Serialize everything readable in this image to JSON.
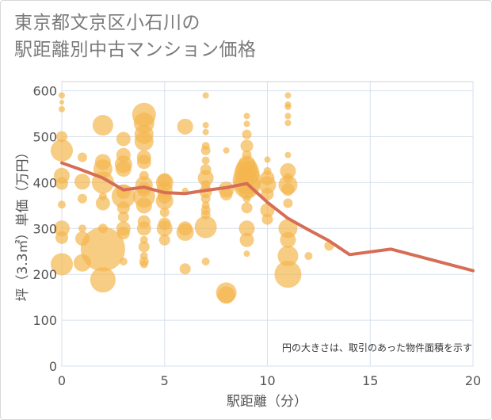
{
  "title_line1": "東京都文京区小石川の",
  "title_line2": "駅距離別中古マンション価格",
  "chart_data": {
    "type": "scatter",
    "xlabel": "駅距離（分）",
    "ylabel": "坪（3.3㎡）単価（万円）",
    "xlim": [
      0,
      20
    ],
    "ylim": [
      0,
      620
    ],
    "x_ticks": [
      0,
      5,
      10,
      15,
      20
    ],
    "y_ticks": [
      0,
      100,
      200,
      300,
      400,
      500,
      600
    ],
    "grid": true,
    "note": "円の大きさは、取引のあった物件面積を示す",
    "bubble_color": "#f3b74f",
    "line_color": "#d66e55",
    "line": {
      "x": [
        0,
        1,
        2,
        3,
        4,
        5,
        6,
        7,
        8,
        9,
        10,
        11,
        12,
        13,
        14,
        16,
        20
      ],
      "y": [
        443,
        427,
        410,
        384,
        390,
        378,
        376,
        383,
        389,
        398,
        357,
        322,
        297,
        273,
        243,
        255,
        208
      ]
    },
    "points": [
      {
        "x": 0,
        "y": 590,
        "s": 4
      },
      {
        "x": 0,
        "y": 575,
        "s": 3
      },
      {
        "x": 0,
        "y": 560,
        "s": 4
      },
      {
        "x": 0,
        "y": 500,
        "s": 7
      },
      {
        "x": 0,
        "y": 470,
        "s": 14
      },
      {
        "x": 0,
        "y": 415,
        "s": 10
      },
      {
        "x": 0,
        "y": 398,
        "s": 8
      },
      {
        "x": 0,
        "y": 352,
        "s": 5
      },
      {
        "x": 0,
        "y": 300,
        "s": 10
      },
      {
        "x": 0,
        "y": 280,
        "s": 8
      },
      {
        "x": 0,
        "y": 222,
        "s": 14
      },
      {
        "x": 1,
        "y": 455,
        "s": 6
      },
      {
        "x": 1,
        "y": 402,
        "s": 10
      },
      {
        "x": 1,
        "y": 365,
        "s": 6
      },
      {
        "x": 1,
        "y": 300,
        "s": 5
      },
      {
        "x": 1,
        "y": 278,
        "s": 9
      },
      {
        "x": 1,
        "y": 225,
        "s": 11
      },
      {
        "x": 2,
        "y": 525,
        "s": 13
      },
      {
        "x": 2,
        "y": 445,
        "s": 10
      },
      {
        "x": 2,
        "y": 430,
        "s": 12
      },
      {
        "x": 2,
        "y": 400,
        "s": 14
      },
      {
        "x": 2,
        "y": 370,
        "s": 5
      },
      {
        "x": 2,
        "y": 355,
        "s": 9
      },
      {
        "x": 2,
        "y": 300,
        "s": 6
      },
      {
        "x": 2,
        "y": 255,
        "s": 28
      },
      {
        "x": 2,
        "y": 188,
        "s": 16
      },
      {
        "x": 3,
        "y": 495,
        "s": 9
      },
      {
        "x": 3,
        "y": 460,
        "s": 9
      },
      {
        "x": 3,
        "y": 440,
        "s": 11
      },
      {
        "x": 3,
        "y": 430,
        "s": 10
      },
      {
        "x": 3,
        "y": 380,
        "s": 9
      },
      {
        "x": 3,
        "y": 370,
        "s": 15
      },
      {
        "x": 3,
        "y": 345,
        "s": 8
      },
      {
        "x": 3,
        "y": 325,
        "s": 7
      },
      {
        "x": 3,
        "y": 300,
        "s": 9
      },
      {
        "x": 3,
        "y": 290,
        "s": 8
      },
      {
        "x": 3,
        "y": 228,
        "s": 5
      },
      {
        "x": 4,
        "y": 548,
        "s": 15
      },
      {
        "x": 4,
        "y": 530,
        "s": 13
      },
      {
        "x": 4,
        "y": 505,
        "s": 12
      },
      {
        "x": 4,
        "y": 490,
        "s": 12
      },
      {
        "x": 4,
        "y": 455,
        "s": 9
      },
      {
        "x": 4,
        "y": 445,
        "s": 9
      },
      {
        "x": 4,
        "y": 415,
        "s": 6
      },
      {
        "x": 4,
        "y": 395,
        "s": 11
      },
      {
        "x": 4,
        "y": 385,
        "s": 9
      },
      {
        "x": 4,
        "y": 370,
        "s": 14
      },
      {
        "x": 4,
        "y": 350,
        "s": 10
      },
      {
        "x": 4,
        "y": 315,
        "s": 8
      },
      {
        "x": 4,
        "y": 300,
        "s": 9
      },
      {
        "x": 4,
        "y": 275,
        "s": 5
      },
      {
        "x": 4,
        "y": 260,
        "s": 7
      },
      {
        "x": 4,
        "y": 240,
        "s": 5
      },
      {
        "x": 4,
        "y": 228,
        "s": 6
      },
      {
        "x": 4,
        "y": 222,
        "s": 5
      },
      {
        "x": 5,
        "y": 405,
        "s": 9
      },
      {
        "x": 5,
        "y": 400,
        "s": 11
      },
      {
        "x": 5,
        "y": 385,
        "s": 10
      },
      {
        "x": 5,
        "y": 370,
        "s": 9
      },
      {
        "x": 5,
        "y": 360,
        "s": 11
      },
      {
        "x": 5,
        "y": 335,
        "s": 6
      },
      {
        "x": 5,
        "y": 310,
        "s": 8
      },
      {
        "x": 5,
        "y": 300,
        "s": 10
      },
      {
        "x": 5,
        "y": 275,
        "s": 7
      },
      {
        "x": 6,
        "y": 522,
        "s": 10
      },
      {
        "x": 6,
        "y": 382,
        "s": 4
      },
      {
        "x": 6,
        "y": 300,
        "s": 9
      },
      {
        "x": 6,
        "y": 292,
        "s": 11
      },
      {
        "x": 6,
        "y": 212,
        "s": 7
      },
      {
        "x": 7,
        "y": 590,
        "s": 4
      },
      {
        "x": 7,
        "y": 525,
        "s": 4
      },
      {
        "x": 7,
        "y": 510,
        "s": 4
      },
      {
        "x": 7,
        "y": 480,
        "s": 5
      },
      {
        "x": 7,
        "y": 470,
        "s": 6
      },
      {
        "x": 7,
        "y": 448,
        "s": 5
      },
      {
        "x": 7,
        "y": 428,
        "s": 7
      },
      {
        "x": 7,
        "y": 410,
        "s": 10
      },
      {
        "x": 7,
        "y": 395,
        "s": 6
      },
      {
        "x": 7,
        "y": 380,
        "s": 8
      },
      {
        "x": 7,
        "y": 365,
        "s": 6
      },
      {
        "x": 7,
        "y": 350,
        "s": 5
      },
      {
        "x": 7,
        "y": 340,
        "s": 6
      },
      {
        "x": 7,
        "y": 330,
        "s": 6
      },
      {
        "x": 7,
        "y": 303,
        "s": 14
      },
      {
        "x": 7,
        "y": 228,
        "s": 5
      },
      {
        "x": 8,
        "y": 470,
        "s": 4
      },
      {
        "x": 8,
        "y": 385,
        "s": 10
      },
      {
        "x": 8,
        "y": 375,
        "s": 8
      },
      {
        "x": 8,
        "y": 160,
        "s": 13
      },
      {
        "x": 8,
        "y": 155,
        "s": 11
      },
      {
        "x": 9,
        "y": 545,
        "s": 4
      },
      {
        "x": 9,
        "y": 528,
        "s": 4
      },
      {
        "x": 9,
        "y": 505,
        "s": 6
      },
      {
        "x": 9,
        "y": 480,
        "s": 8
      },
      {
        "x": 9,
        "y": 460,
        "s": 6
      },
      {
        "x": 9,
        "y": 440,
        "s": 11
      },
      {
        "x": 9,
        "y": 430,
        "s": 14
      },
      {
        "x": 9,
        "y": 420,
        "s": 16
      },
      {
        "x": 9,
        "y": 405,
        "s": 18
      },
      {
        "x": 9,
        "y": 395,
        "s": 17
      },
      {
        "x": 9,
        "y": 380,
        "s": 10
      },
      {
        "x": 9,
        "y": 365,
        "s": 5
      },
      {
        "x": 9,
        "y": 345,
        "s": 7
      },
      {
        "x": 9,
        "y": 300,
        "s": 10
      },
      {
        "x": 9,
        "y": 275,
        "s": 9
      },
      {
        "x": 9,
        "y": 245,
        "s": 4
      },
      {
        "x": 10,
        "y": 450,
        "s": 4
      },
      {
        "x": 10,
        "y": 425,
        "s": 5
      },
      {
        "x": 10,
        "y": 410,
        "s": 9
      },
      {
        "x": 10,
        "y": 395,
        "s": 11
      },
      {
        "x": 10,
        "y": 375,
        "s": 8
      },
      {
        "x": 10,
        "y": 340,
        "s": 9
      },
      {
        "x": 10,
        "y": 320,
        "s": 7
      },
      {
        "x": 11,
        "y": 590,
        "s": 4
      },
      {
        "x": 11,
        "y": 570,
        "s": 4
      },
      {
        "x": 11,
        "y": 565,
        "s": 4
      },
      {
        "x": 11,
        "y": 545,
        "s": 4
      },
      {
        "x": 11,
        "y": 530,
        "s": 4
      },
      {
        "x": 11,
        "y": 460,
        "s": 4
      },
      {
        "x": 11,
        "y": 425,
        "s": 10
      },
      {
        "x": 11,
        "y": 410,
        "s": 6
      },
      {
        "x": 11,
        "y": 395,
        "s": 12
      },
      {
        "x": 11,
        "y": 385,
        "s": 8
      },
      {
        "x": 11,
        "y": 355,
        "s": 6
      },
      {
        "x": 11,
        "y": 300,
        "s": 12
      },
      {
        "x": 11,
        "y": 275,
        "s": 10
      },
      {
        "x": 11,
        "y": 240,
        "s": 13
      },
      {
        "x": 11,
        "y": 200,
        "s": 17
      },
      {
        "x": 12,
        "y": 240,
        "s": 5
      },
      {
        "x": 13,
        "y": 262,
        "s": 6
      }
    ]
  }
}
